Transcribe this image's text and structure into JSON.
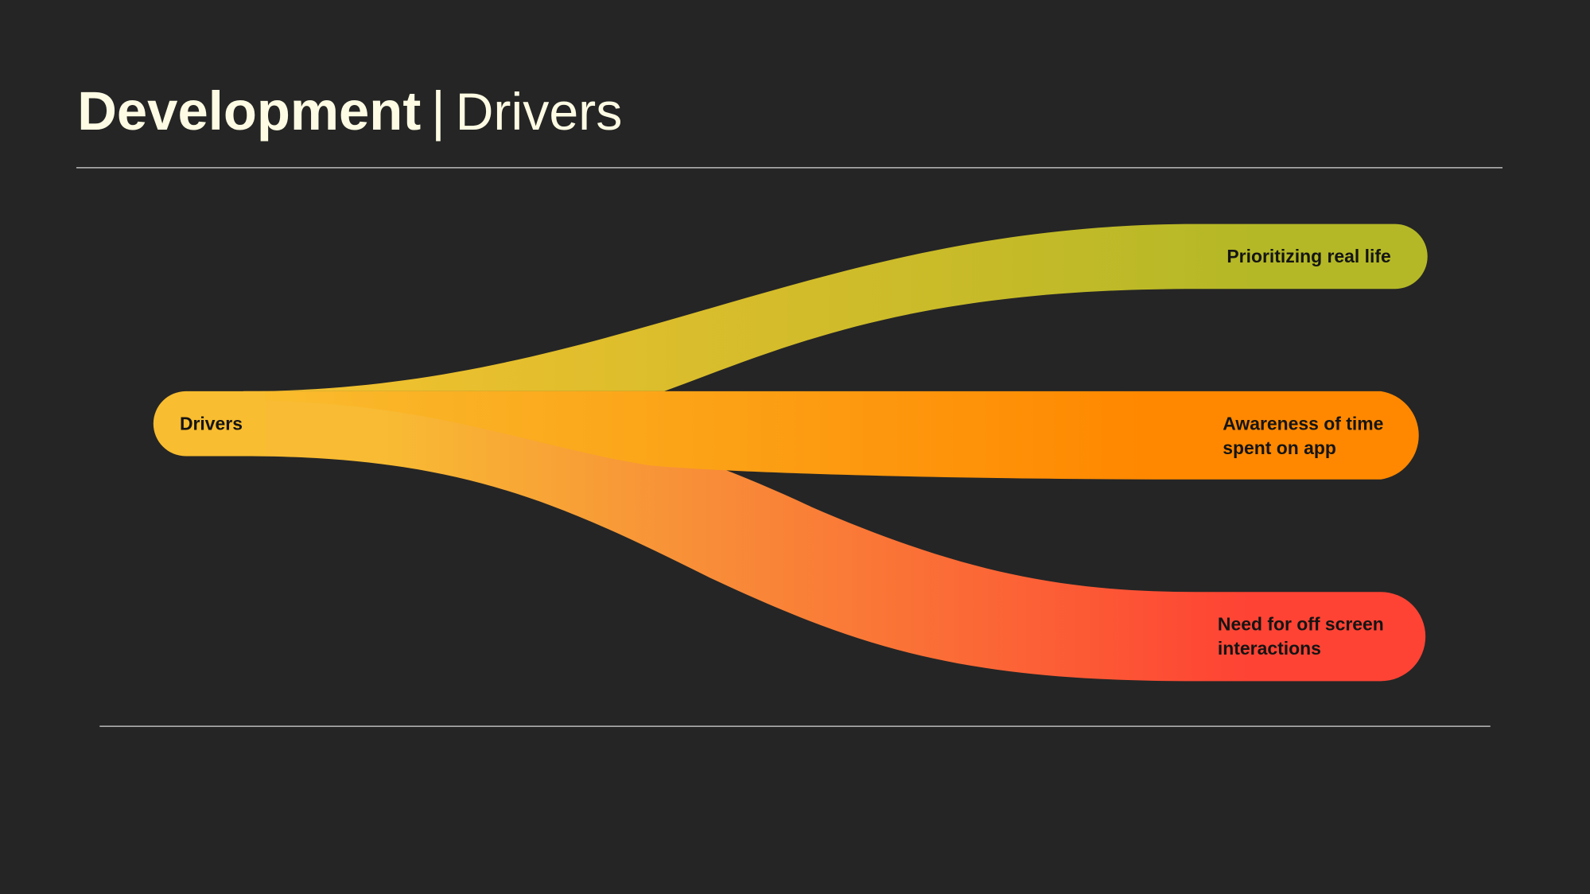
{
  "header": {
    "title": "Development",
    "divider": "|",
    "subtitle": "Drivers"
  },
  "source": {
    "label": "Drivers"
  },
  "targets": [
    {
      "lines": [
        "Prioritizing real life"
      ]
    },
    {
      "lines": [
        "Awareness of time",
        "spent on app"
      ]
    },
    {
      "lines": [
        "Need for off screen",
        "interactions"
      ]
    }
  ]
}
